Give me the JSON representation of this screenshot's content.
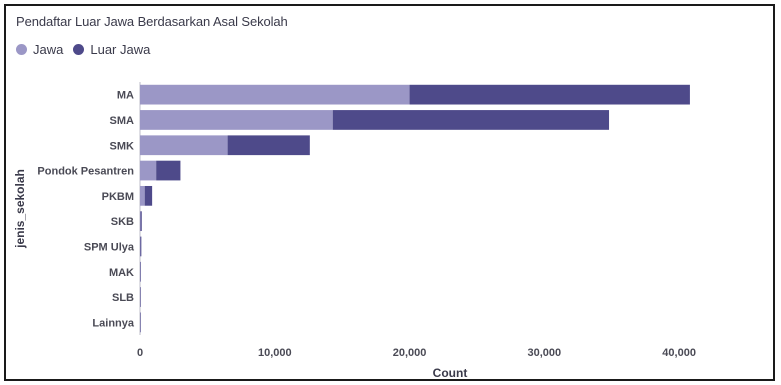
{
  "chart_data": {
    "type": "bar",
    "orientation": "horizontal",
    "stacked": true,
    "title": "Pendaftar Luar Jawa Berdasarkan Asal Sekolah",
    "xlabel": "Count",
    "ylabel": "jenis_sekolah",
    "categories": [
      "MA",
      "SMA",
      "SMK",
      "Pondok Pesantren",
      "PKBM",
      "SKB",
      "SPM Ulya",
      "MAK",
      "SLB",
      "Lainnya"
    ],
    "series": [
      {
        "name": "Jawa",
        "color": "#9b97c6",
        "values": [
          20000,
          14300,
          6500,
          1200,
          350,
          40,
          30,
          10,
          5,
          5
        ]
      },
      {
        "name": "Luar Jawa",
        "color": "#4e4a8a",
        "values": [
          20800,
          20500,
          6100,
          1800,
          550,
          90,
          70,
          15,
          10,
          8
        ]
      }
    ],
    "xlim": [
      0,
      46000
    ],
    "xticks": [
      0,
      10000,
      20000,
      30000,
      40000
    ],
    "xtick_labels": [
      "0",
      "10,000",
      "20,000",
      "30,000",
      "40,000"
    ],
    "legend_position": "top-left",
    "grid": false
  }
}
